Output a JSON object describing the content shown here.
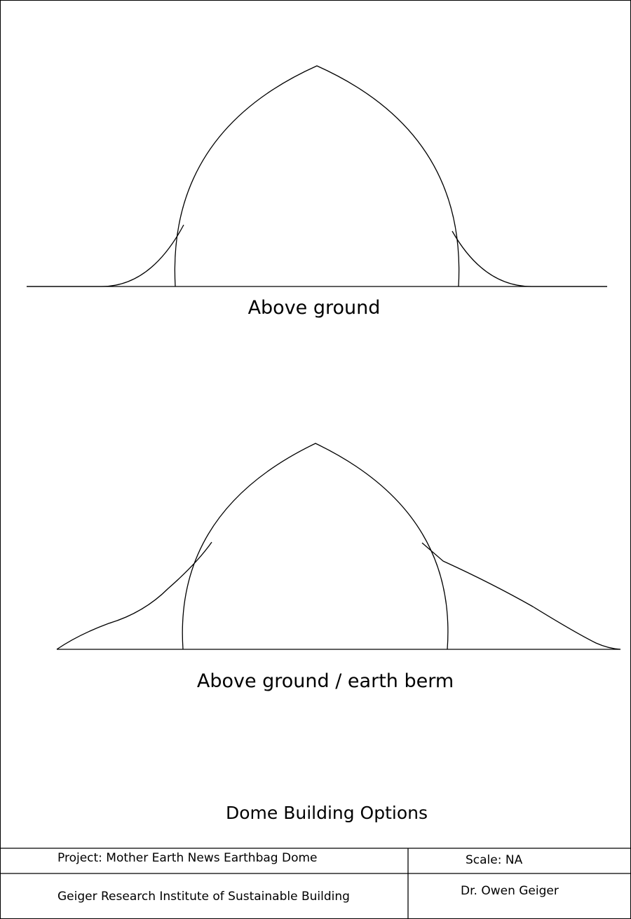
{
  "diagrams": [
    {
      "name": "above-ground",
      "caption": "Above ground"
    },
    {
      "name": "above-ground-earth-berm",
      "caption": "Above ground / earth berm"
    }
  ],
  "sheet_title": "Dome Building Options",
  "title_block": {
    "project": "Project: Mother Earth News Earthbag Dome",
    "scale": "Scale: NA",
    "institute": "Geiger Research Institute of Sustainable Building",
    "author": "Dr. Owen  Geiger"
  },
  "colors": {
    "line": "#000000",
    "background": "#ffffff"
  }
}
